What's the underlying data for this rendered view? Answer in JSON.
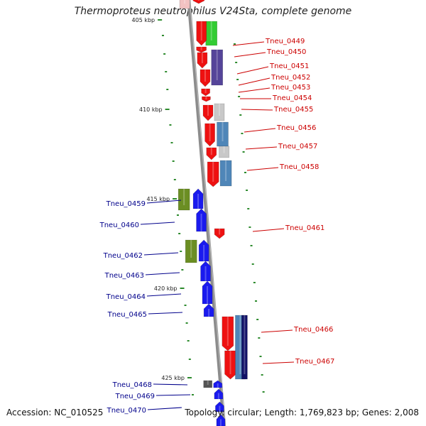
{
  "title": "Thermoproteus neutrophilus V24Sta, complete genome",
  "accession": "Accession: NC_010525",
  "summary": "Topology: circular; Length: 1,769,823 bp; Genes: 2,008",
  "colors": {
    "axis": "#8c8c8c",
    "tick": "#2e8b2e",
    "forward_label": "#cc0000",
    "reverse_label": "#00008b",
    "red": "#ee1111",
    "blue": "#1a1aee",
    "green": "#33cc33",
    "purple": "#554499",
    "grey": "#c8c8c8",
    "steelblue": "#4f86b8",
    "olive": "#6b8e23",
    "navy": "#111166"
  },
  "kbp_labels": [
    "405 kbp",
    "410 kbp",
    "415 kbp",
    "420 kbp",
    "425 kbp"
  ],
  "forward_labels": [
    "Tneu_0449",
    "Tneu_0450",
    "Tneu_0451",
    "Tneu_0452",
    "Tneu_0453",
    "Tneu_0454",
    "Tneu_0455",
    "Tneu_0456",
    "Tneu_0457",
    "Tneu_0458",
    "Tneu_0461",
    "Tneu_0466",
    "Tneu_0467"
  ],
  "reverse_labels": [
    "Tneu_0459",
    "Tneu_0460",
    "Tneu_0462",
    "Tneu_0463",
    "Tneu_0464",
    "Tneu_0465",
    "Tneu_0468",
    "Tneu_0469",
    "Tneu_0470"
  ]
}
